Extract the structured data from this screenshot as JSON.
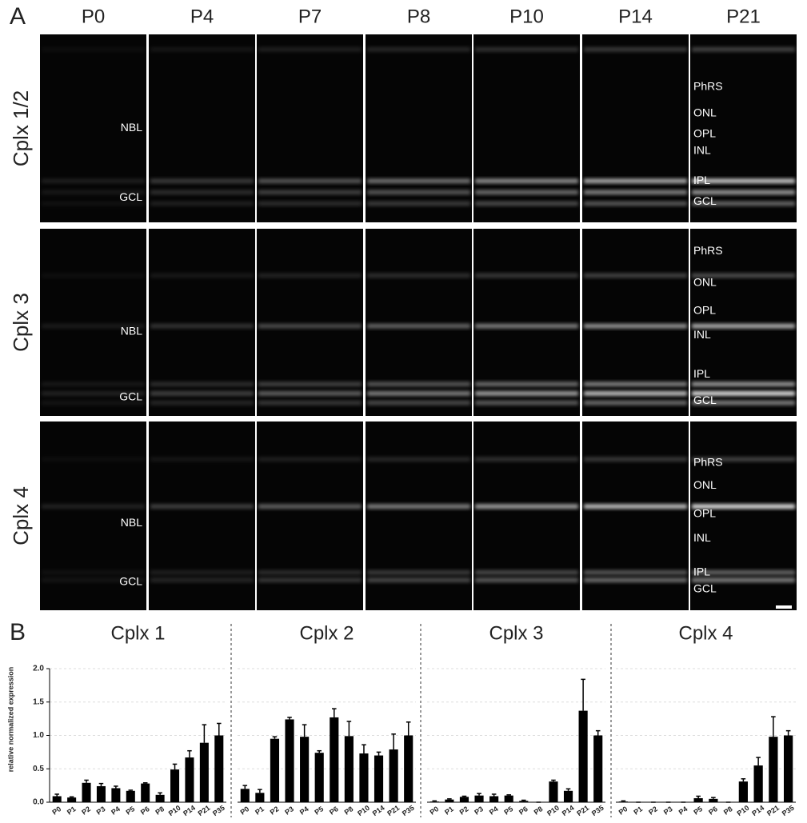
{
  "panel_a": {
    "label": "A",
    "columns": [
      "P0",
      "P4",
      "P7",
      "P8",
      "P10",
      "P14",
      "P21"
    ],
    "rows": [
      {
        "label": "Cplx 1/2",
        "early_layers": [
          "NBL",
          "GCL"
        ],
        "mature_layers": [
          "PhRS",
          "ONL",
          "OPL",
          "INL",
          "IPL",
          "GCL"
        ]
      },
      {
        "label": "Cplx 3",
        "early_layers": [
          "NBL",
          "GCL"
        ],
        "mature_layers": [
          "PhRS",
          "ONL",
          "OPL",
          "INL",
          "IPL",
          "GCL"
        ]
      },
      {
        "label": "Cplx 4",
        "early_layers": [
          "NBL",
          "GCL"
        ],
        "mature_layers": [
          "PhRS",
          "ONL",
          "OPL",
          "INL",
          "IPL",
          "GCL"
        ]
      }
    ]
  },
  "panel_b": {
    "label": "B"
  },
  "chart_data": [
    {
      "type": "bar",
      "title": "Cplx 1",
      "y_label": "relative normalized expression",
      "categories": [
        "P0",
        "P1",
        "P2",
        "P3",
        "P4",
        "P5",
        "P6",
        "P8",
        "P10",
        "P14",
        "P21",
        "P35"
      ],
      "values": [
        0.09,
        0.07,
        0.29,
        0.24,
        0.21,
        0.17,
        0.28,
        0.11,
        0.49,
        0.67,
        0.89,
        1.0
      ],
      "errors": [
        0.03,
        0.01,
        0.04,
        0.04,
        0.03,
        0.01,
        0.01,
        0.03,
        0.08,
        0.1,
        0.27,
        0.18
      ],
      "color": "#000000",
      "ylim": [
        0,
        2
      ],
      "yticks": [
        {
          "value": 0,
          "label": "0.0"
        },
        {
          "value": 0.5,
          "label": "0.5"
        },
        {
          "value": 1,
          "label": "1.0"
        },
        {
          "value": 1.5,
          "label": "1.5"
        },
        {
          "value": 2,
          "label": "2.0"
        }
      ],
      "grid": true
    },
    {
      "type": "bar",
      "title": "Cplx 2",
      "categories": [
        "P0",
        "P1",
        "P2",
        "P3",
        "P4",
        "P5",
        "P6",
        "P8",
        "P10",
        "P14",
        "P21",
        "P35"
      ],
      "values": [
        0.2,
        0.14,
        0.95,
        1.24,
        0.98,
        0.74,
        1.27,
        0.99,
        0.73,
        0.7,
        0.79,
        1.0
      ],
      "errors": [
        0.05,
        0.05,
        0.03,
        0.03,
        0.18,
        0.03,
        0.13,
        0.22,
        0.13,
        0.05,
        0.23,
        0.2
      ],
      "color": "#000000",
      "ylim": [
        0,
        2
      ],
      "grid": true
    },
    {
      "type": "bar",
      "title": "Cplx 3",
      "categories": [
        "P0",
        "P1",
        "P2",
        "P3",
        "P4",
        "P5",
        "P6",
        "P8",
        "P10",
        "P14",
        "P21",
        "P35"
      ],
      "values": [
        0.01,
        0.04,
        0.08,
        0.1,
        0.09,
        0.1,
        0.02,
        0.0,
        0.31,
        0.17,
        1.37,
        1.0
      ],
      "errors": [
        0.01,
        0.01,
        0.01,
        0.03,
        0.03,
        0.01,
        0.01,
        0.0,
        0.02,
        0.03,
        0.47,
        0.07
      ],
      "color": "#000000",
      "ylim": [
        0,
        2
      ],
      "grid": true
    },
    {
      "type": "bar",
      "title": "Cplx 4",
      "categories": [
        "P0",
        "P1",
        "P2",
        "P3",
        "P4",
        "P5",
        "P6",
        "P8",
        "P10",
        "P14",
        "P21",
        "P35"
      ],
      "values": [
        0.01,
        0.0,
        0.0,
        0.0,
        0.0,
        0.06,
        0.05,
        0.0,
        0.31,
        0.55,
        0.98,
        1.0
      ],
      "errors": [
        0.01,
        0.0,
        0.0,
        0.0,
        0.0,
        0.03,
        0.02,
        0.0,
        0.04,
        0.12,
        0.3,
        0.07
      ],
      "color": "#000000",
      "ylim": [
        0,
        2
      ],
      "grid": true
    }
  ]
}
